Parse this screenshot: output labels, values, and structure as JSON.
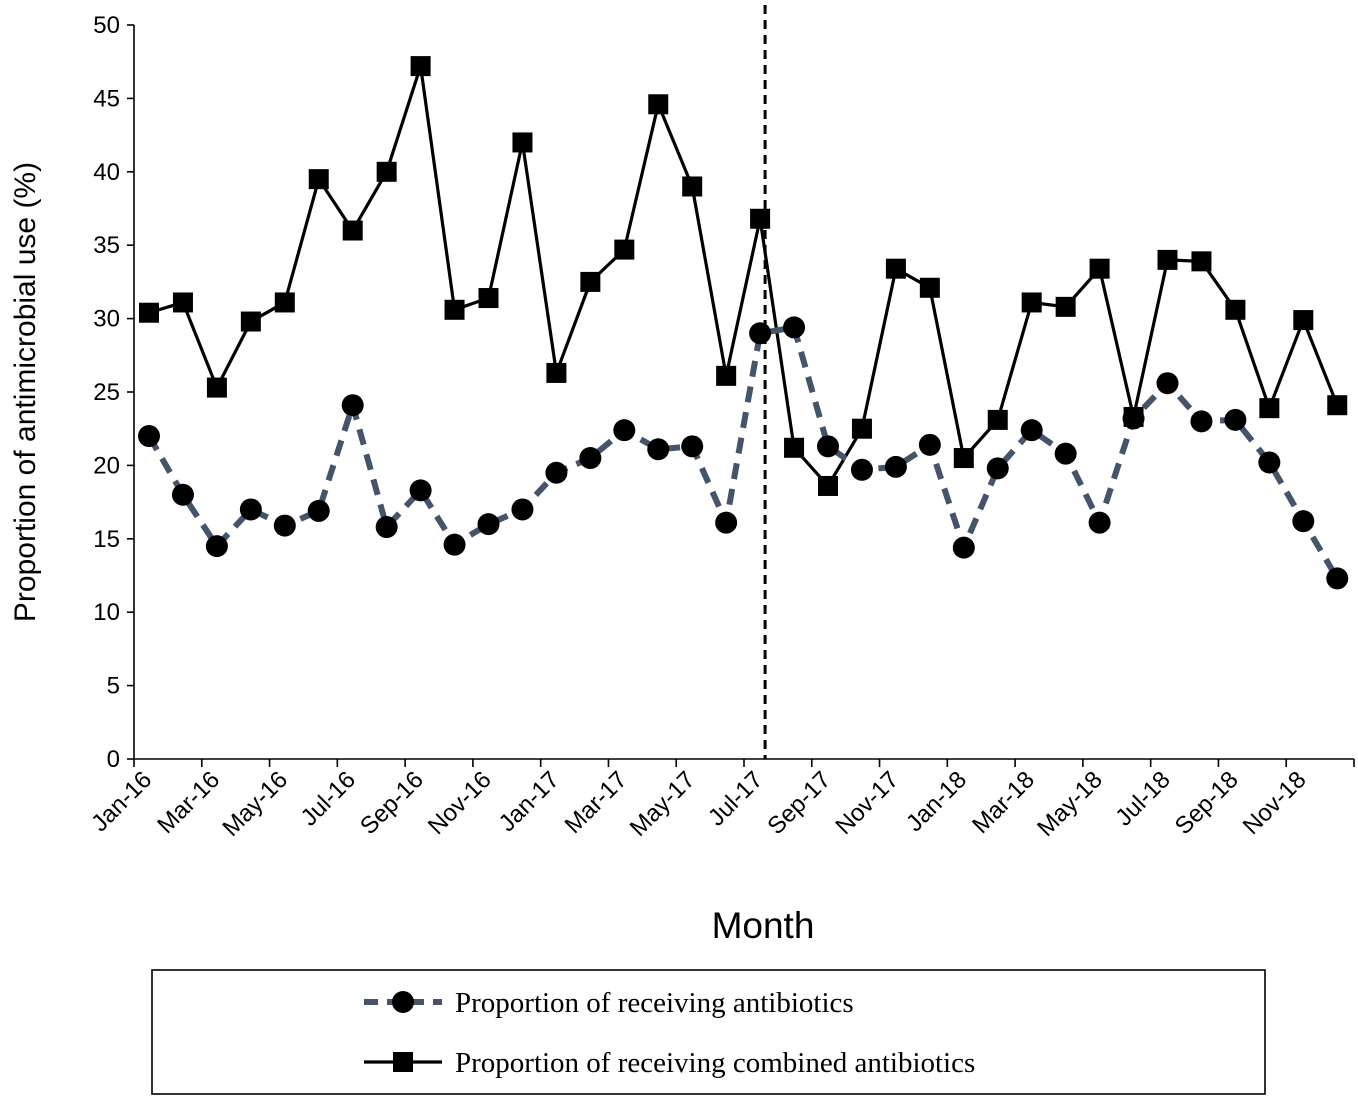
{
  "chart_data": {
    "type": "line",
    "title": "",
    "xlabel": "Month",
    "ylabel": "Proportion of antimicrobial use (%)",
    "ylim": [
      0,
      50
    ],
    "yticks": [
      0,
      5,
      10,
      15,
      20,
      25,
      30,
      35,
      40,
      45,
      50
    ],
    "grid": false,
    "legend_position": "bottom",
    "categories": [
      "Jan-16",
      "Feb-16",
      "Mar-16",
      "Apr-16",
      "May-16",
      "Jun-16",
      "Jul-16",
      "Aug-16",
      "Sep-16",
      "Oct-16",
      "Nov-16",
      "Dec-16",
      "Jan-17",
      "Feb-17",
      "Mar-17",
      "Apr-17",
      "May-17",
      "Jun-17",
      "Jul-17",
      "Aug-17",
      "Sep-17",
      "Oct-17",
      "Nov-17",
      "Dec-17",
      "Jan-18",
      "Feb-18",
      "Mar-18",
      "Apr-18",
      "May-18",
      "Jun-18",
      "Jul-18",
      "Aug-18",
      "Sep-18",
      "Oct-18",
      "Nov-18",
      "Dec-18"
    ],
    "tick_labels": [
      "Jan-16",
      "Mar-16",
      "May-16",
      "Jul-16",
      "Sep-16",
      "Nov-16",
      "Jan-17",
      "Mar-17",
      "May-17",
      "Jul-17",
      "Sep-17",
      "Nov-17",
      "Jan-18",
      "Mar-18",
      "May-18",
      "Jul-18",
      "Sep-18",
      "Nov-18"
    ],
    "intervention_marker": "Jul-17",
    "series": [
      {
        "name": "Proportion of receiving antibiotics",
        "marker": "circle",
        "line_style": "dashed",
        "color": "#44546a",
        "values": [
          22.0,
          18.0,
          14.5,
          17.0,
          15.9,
          16.9,
          24.1,
          15.8,
          18.3,
          14.6,
          16.0,
          17.0,
          19.5,
          20.5,
          22.4,
          21.1,
          21.3,
          16.1,
          29.0,
          29.4,
          21.3,
          19.7,
          19.9,
          21.4,
          14.4,
          19.8,
          22.4,
          20.8,
          16.1,
          23.2,
          25.6,
          23.0,
          23.1,
          20.2,
          16.2,
          12.3
        ]
      },
      {
        "name": "Proportion of receiving combined antibiotics",
        "marker": "square",
        "line_style": "solid",
        "color": "#000000",
        "values": [
          30.4,
          31.1,
          25.3,
          29.8,
          31.1,
          39.5,
          36.0,
          40.0,
          47.2,
          30.6,
          31.4,
          42.0,
          26.3,
          32.5,
          34.7,
          44.6,
          39.0,
          26.1,
          36.8,
          21.2,
          18.6,
          22.5,
          33.4,
          32.1,
          20.5,
          23.1,
          31.1,
          30.8,
          33.4,
          23.3,
          34.0,
          33.9,
          30.6,
          23.9,
          29.9,
          24.1
        ]
      }
    ]
  }
}
